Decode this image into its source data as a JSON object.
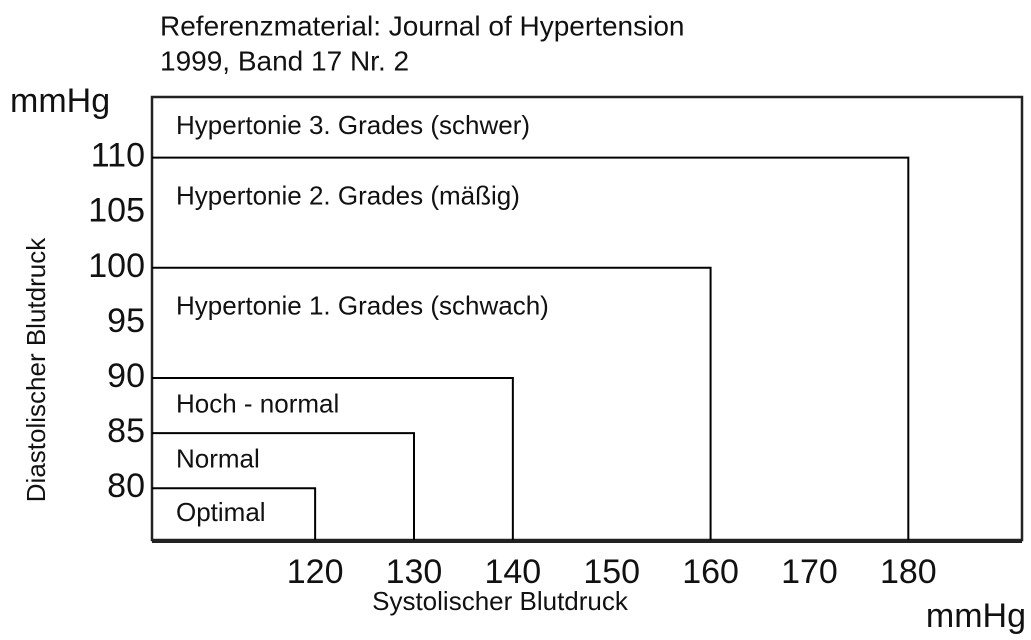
{
  "chart_data": {
    "type": "region",
    "title": [
      "Referenzmaterial: Journal of Hypertension",
      "1999, Band 17 Nr. 2"
    ],
    "x_label": "Systolischer Blutdruck",
    "x_unit": "mmHg",
    "y_label": "Diastolischer Blutdruck",
    "y_unit": "mmHg",
    "xlim": [
      103.5,
      191.5
    ],
    "ylim": [
      75.3,
      115.5
    ],
    "xticks": [
      120,
      130,
      140,
      150,
      160,
      170,
      180
    ],
    "yticks": [
      80,
      85,
      90,
      95,
      100,
      105,
      110
    ],
    "color": "#000000",
    "regions": [
      {
        "label": "Optimal",
        "x": 120,
        "y": 80
      },
      {
        "label": "Normal",
        "x": 130,
        "y": 85
      },
      {
        "label": "Hoch - normal",
        "x": 140,
        "y": 90
      },
      {
        "label": "Hypertonie 1. Grades (schwach)",
        "x": 160,
        "y": 100
      },
      {
        "label": "Hypertonie 2. Grades (mäßig)",
        "x": 180,
        "y": 110
      },
      {
        "label": "Hypertonie 3. Grades (schwer)"
      }
    ]
  }
}
